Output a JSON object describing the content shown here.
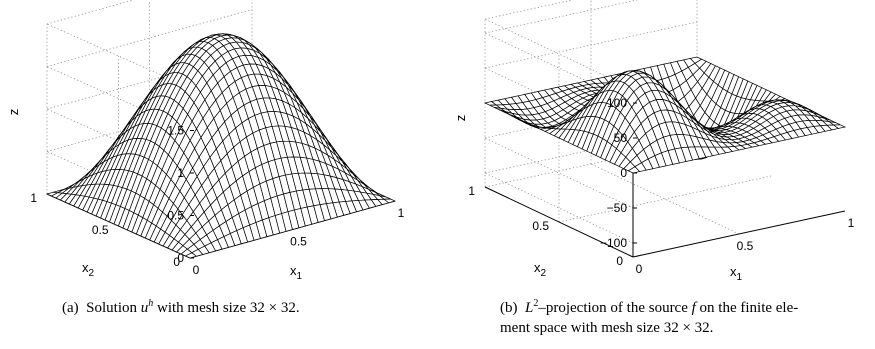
{
  "chart_data": [
    {
      "type": "surface",
      "panel_label": "(a)",
      "caption": {
        "pre": "Solution ",
        "var": "u",
        "sup": "h",
        "post": " with mesh size 32 × 32."
      },
      "xlabel": "x",
      "xlabel_sub": "1",
      "ylabel": "x",
      "ylabel_sub": "2",
      "zlabel": "z",
      "xlim": [
        0,
        1
      ],
      "ylim": [
        0,
        1
      ],
      "zlim": [
        0,
        2
      ],
      "xticks": [
        "0",
        "0.5",
        "1"
      ],
      "yticks": [
        "0",
        "0.5",
        "1"
      ],
      "zticks": [
        {
          "v": 0,
          "label": "0"
        },
        {
          "v": 0.5,
          "label": "0.5"
        },
        {
          "v": 1,
          "label": "1"
        },
        {
          "v": 1.5,
          "label": "1.5"
        }
      ],
      "mesh": [
        32,
        32
      ],
      "peak_value": 1.9,
      "grid": true
    },
    {
      "type": "surface",
      "panel_label": "(b)",
      "caption": {
        "pre": "L",
        "sup": "2",
        "mid": "–projection of the source ",
        "var": "f",
        "post": " on the finite ele-",
        "line2": "ment space with mesh size 32 × 32."
      },
      "xlabel": "x",
      "xlabel_sub": "1",
      "ylabel": "x",
      "ylabel_sub": "2",
      "zlabel": "z",
      "xlim": [
        0,
        1
      ],
      "ylim": [
        0,
        1
      ],
      "zlim": [
        -120,
        120
      ],
      "xticks": [
        "0",
        "0.5",
        "1"
      ],
      "yticks": [
        "0",
        "0.5",
        "1"
      ],
      "zticks": [
        {
          "v": -100,
          "label": "−100"
        },
        {
          "v": -50,
          "label": "−50"
        },
        {
          "v": 0,
          "label": "0"
        },
        {
          "v": 50,
          "label": "50"
        },
        {
          "v": 100,
          "label": "100"
        }
      ],
      "mesh": [
        32,
        32
      ],
      "value_range": [
        -110,
        110
      ],
      "grid": true
    }
  ]
}
